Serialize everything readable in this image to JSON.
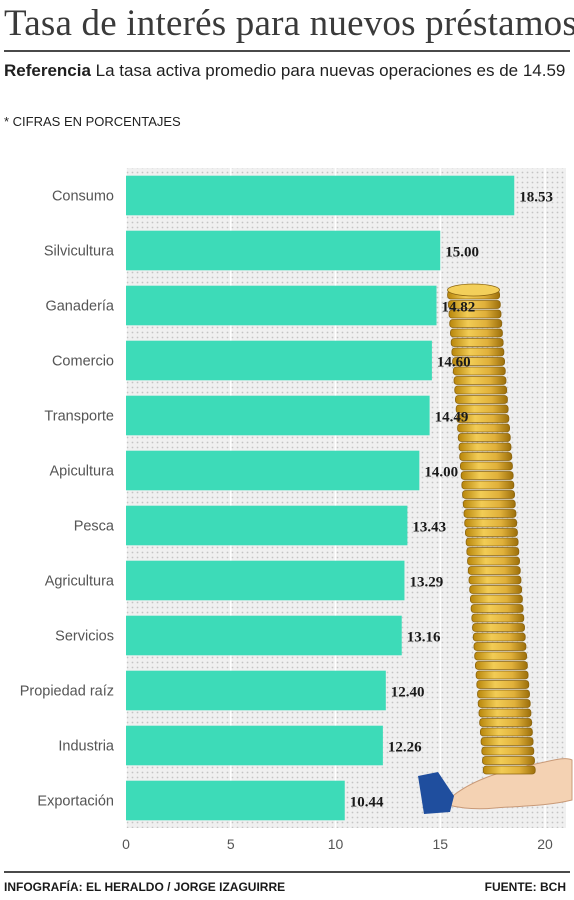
{
  "header": {
    "title": "Tasa de interés para nuevos préstamos",
    "reference_label": "Referencia",
    "reference_text": "La tasa activa promedio para nuevas operaciones es de 14.59",
    "note": "* CIFRAS EN PORCENTAJES"
  },
  "footer": {
    "credit": "INFOGRAFÍA: EL HERALDO / JORGE IZAGUIRRE",
    "source": "FUENTE: BCH"
  },
  "colors": {
    "bar": "#3ddbb8",
    "plot_background": "#e6e6e6",
    "coin": "#e2b53c",
    "cuff": "#1f4e9e",
    "hand": "#f4d2b3"
  },
  "chart_data": {
    "type": "bar",
    "orientation": "horizontal",
    "categories": [
      "Consumo",
      "Silvicultura",
      "Ganadería",
      "Comercio",
      "Transporte",
      "Apicultura",
      "Pesca",
      "Agricultura",
      "Servicios",
      "Propiedad raíz",
      "Industria",
      "Exportación"
    ],
    "values": [
      18.53,
      15.0,
      14.82,
      14.6,
      14.49,
      14.0,
      13.43,
      13.29,
      13.16,
      12.4,
      12.26,
      10.44
    ],
    "value_labels": [
      "18.53",
      "15.00",
      "14.82",
      "14.60",
      "14.49",
      "14.00",
      "13.43",
      "13.29",
      "13.16",
      "12.40",
      "12.26",
      "10.44"
    ],
    "x_ticks": [
      "0",
      "5",
      "10",
      "15",
      "20"
    ],
    "xlim": [
      0,
      21
    ],
    "grid": true,
    "legend": "none",
    "title": "",
    "xlabel": "",
    "ylabel": ""
  }
}
